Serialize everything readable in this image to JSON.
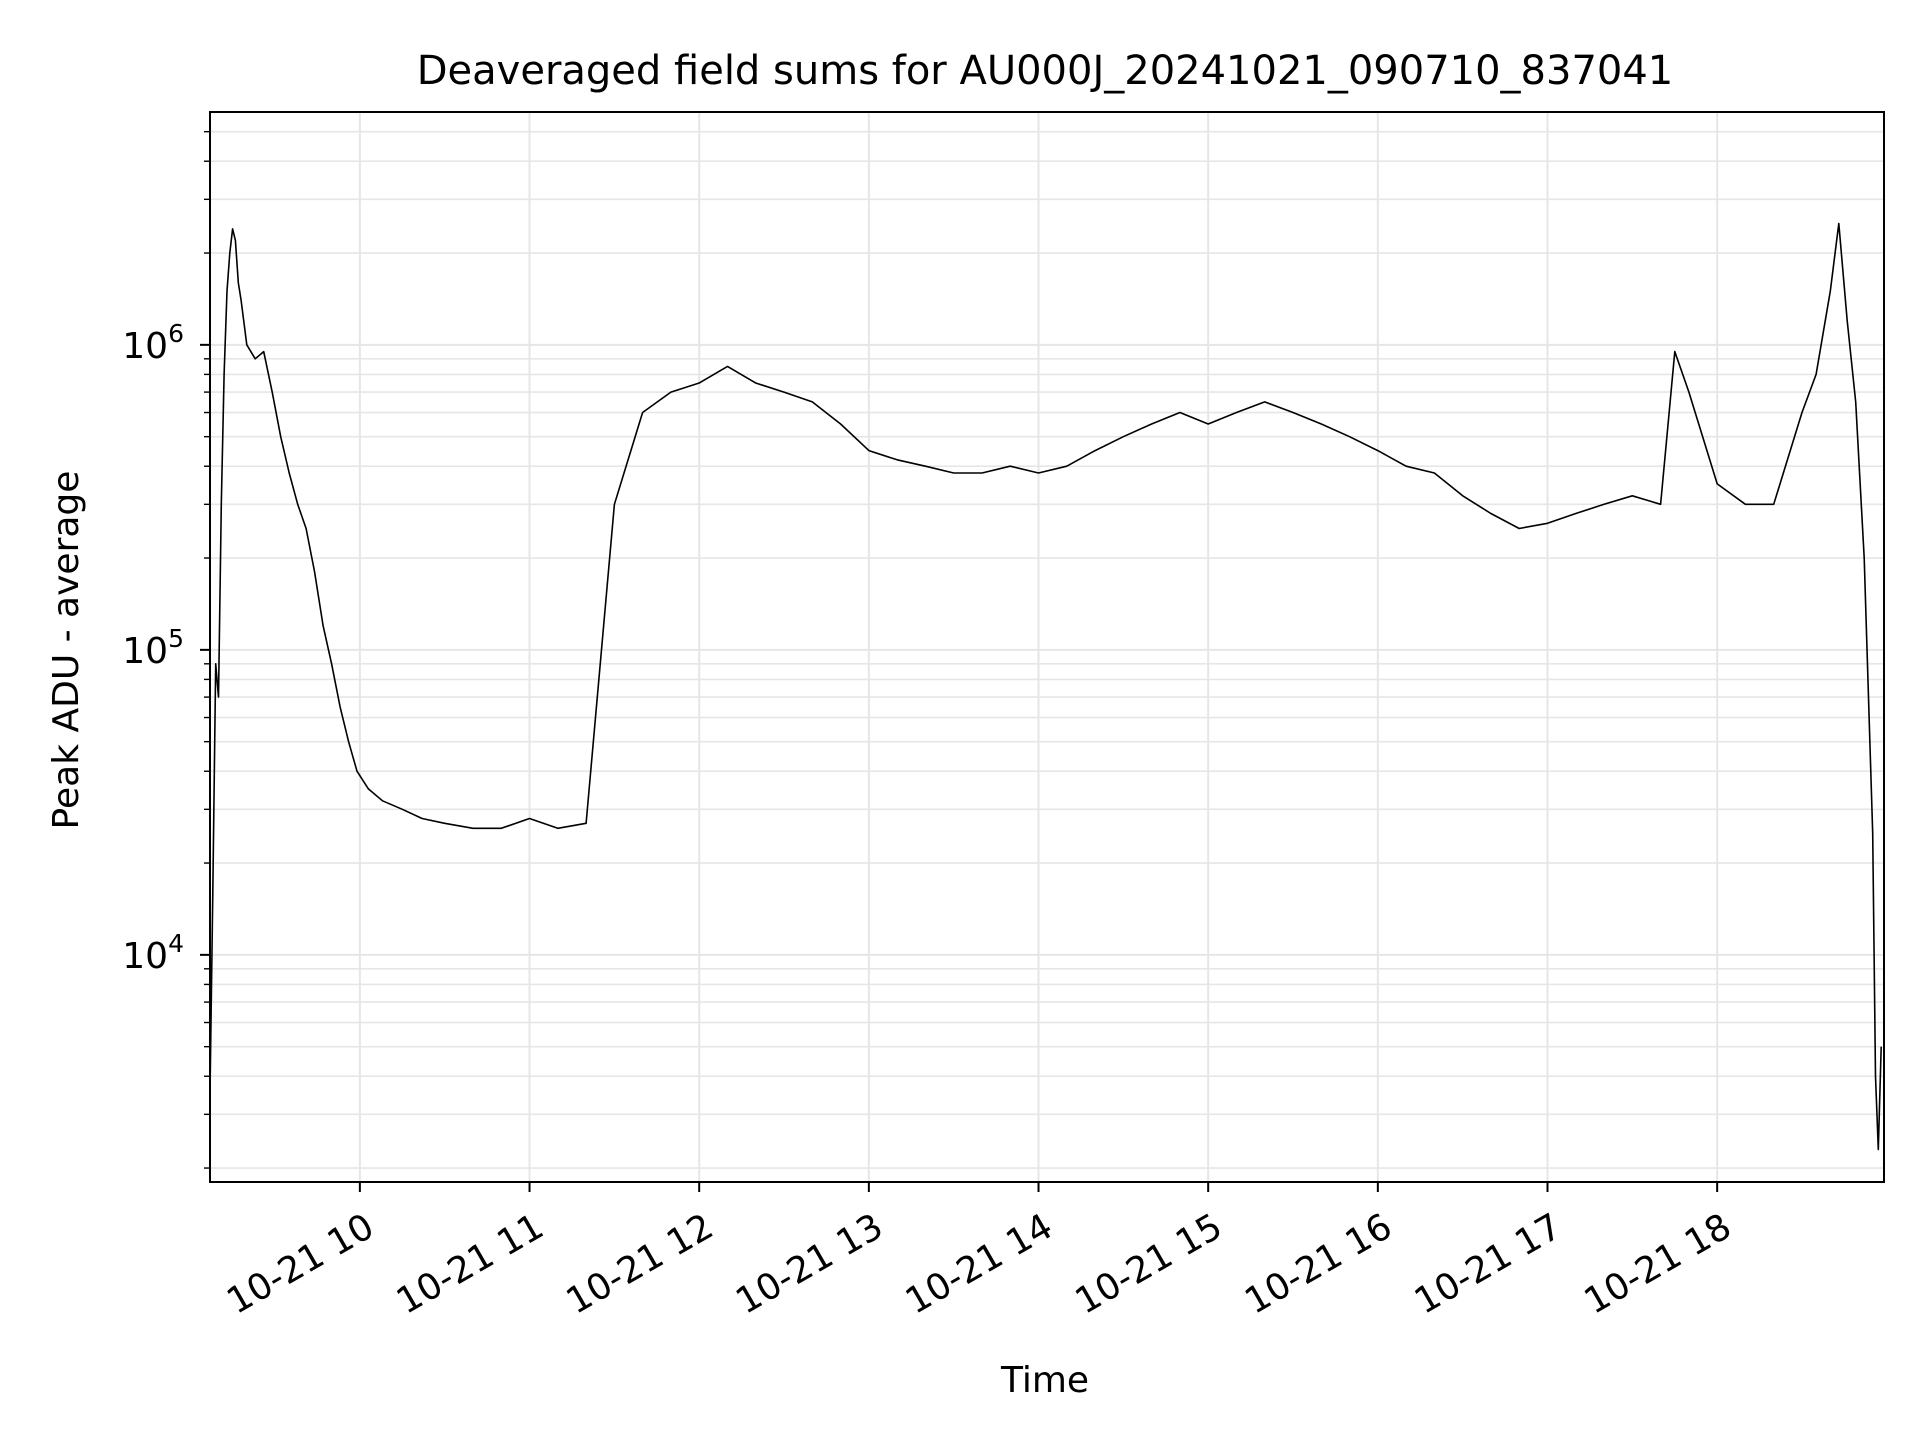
{
  "chart_data": {
    "type": "line",
    "title": "Deaveraged field sums for AU000J_20241021_090710_837041",
    "xlabel": "Time",
    "ylabel": "Peak ADU - average",
    "x_axis_type": "datetime",
    "x_range": [
      "2024-10-21T09:07:00",
      "2024-10-21T18:59:00"
    ],
    "y_scale": "log",
    "ylim": [
      1800,
      5800000
    ],
    "grid": true,
    "x_tick_labels": [
      "10-21 10",
      "10-21 11",
      "10-21 12",
      "10-21 13",
      "10-21 14",
      "10-21 15",
      "10-21 16",
      "10-21 17",
      "10-21 18"
    ],
    "x_ticks": [
      "2024-10-21T10:00:00",
      "2024-10-21T11:00:00",
      "2024-10-21T12:00:00",
      "2024-10-21T13:00:00",
      "2024-10-21T14:00:00",
      "2024-10-21T15:00:00",
      "2024-10-21T16:00:00",
      "2024-10-21T17:00:00",
      "2024-10-21T18:00:00"
    ],
    "y_ticks": [
      {
        "value": 10000,
        "base": "10",
        "exp": "4"
      },
      {
        "value": 100000,
        "base": "10",
        "exp": "5"
      },
      {
        "value": 1000000,
        "base": "10",
        "exp": "6"
      }
    ],
    "line_color": "#000000",
    "grid_color": "#e6e6e6",
    "series": [
      {
        "values": [
          [
            "2024-10-21T09:07:00",
            3500
          ],
          [
            "2024-10-21T09:08:00",
            16000
          ],
          [
            "2024-10-21T09:09:00",
            90000
          ],
          [
            "2024-10-21T09:10:00",
            70000
          ],
          [
            "2024-10-21T09:11:00",
            300000
          ],
          [
            "2024-10-21T09:12:00",
            800000
          ],
          [
            "2024-10-21T09:13:00",
            1500000
          ],
          [
            "2024-10-21T09:14:00",
            2000000
          ],
          [
            "2024-10-21T09:15:00",
            2400000
          ],
          [
            "2024-10-21T09:16:00",
            2200000
          ],
          [
            "2024-10-21T09:17:00",
            1600000
          ],
          [
            "2024-10-21T09:18:00",
            1400000
          ],
          [
            "2024-10-21T09:20:00",
            1000000
          ],
          [
            "2024-10-21T09:23:00",
            900000
          ],
          [
            "2024-10-21T09:26:00",
            950000
          ],
          [
            "2024-10-21T09:29:00",
            700000
          ],
          [
            "2024-10-21T09:32:00",
            500000
          ],
          [
            "2024-10-21T09:35:00",
            380000
          ],
          [
            "2024-10-21T09:38:00",
            300000
          ],
          [
            "2024-10-21T09:41:00",
            250000
          ],
          [
            "2024-10-21T09:44:00",
            180000
          ],
          [
            "2024-10-21T09:47:00",
            120000
          ],
          [
            "2024-10-21T09:50:00",
            90000
          ],
          [
            "2024-10-21T09:53:00",
            65000
          ],
          [
            "2024-10-21T09:56:00",
            50000
          ],
          [
            "2024-10-21T09:59:00",
            40000
          ],
          [
            "2024-10-21T10:03:00",
            35000
          ],
          [
            "2024-10-21T10:08:00",
            32000
          ],
          [
            "2024-10-21T10:15:00",
            30000
          ],
          [
            "2024-10-21T10:22:00",
            28000
          ],
          [
            "2024-10-21T10:30:00",
            27000
          ],
          [
            "2024-10-21T10:40:00",
            26000
          ],
          [
            "2024-10-21T10:50:00",
            26000
          ],
          [
            "2024-10-21T11:00:00",
            28000
          ],
          [
            "2024-10-21T11:10:00",
            26000
          ],
          [
            "2024-10-21T11:20:00",
            27000
          ],
          [
            "2024-10-21T11:30:00",
            300000
          ],
          [
            "2024-10-21T11:40:00",
            600000
          ],
          [
            "2024-10-21T11:50:00",
            700000
          ],
          [
            "2024-10-21T12:00:00",
            750000
          ],
          [
            "2024-10-21T12:10:00",
            850000
          ],
          [
            "2024-10-21T12:20:00",
            750000
          ],
          [
            "2024-10-21T12:30:00",
            700000
          ],
          [
            "2024-10-21T12:40:00",
            650000
          ],
          [
            "2024-10-21T12:50:00",
            550000
          ],
          [
            "2024-10-21T13:00:00",
            450000
          ],
          [
            "2024-10-21T13:10:00",
            420000
          ],
          [
            "2024-10-21T13:20:00",
            400000
          ],
          [
            "2024-10-21T13:30:00",
            380000
          ],
          [
            "2024-10-21T13:40:00",
            380000
          ],
          [
            "2024-10-21T13:50:00",
            400000
          ],
          [
            "2024-10-21T14:00:00",
            380000
          ],
          [
            "2024-10-21T14:10:00",
            400000
          ],
          [
            "2024-10-21T14:20:00",
            450000
          ],
          [
            "2024-10-21T14:30:00",
            500000
          ],
          [
            "2024-10-21T14:40:00",
            550000
          ],
          [
            "2024-10-21T14:50:00",
            600000
          ],
          [
            "2024-10-21T15:00:00",
            550000
          ],
          [
            "2024-10-21T15:10:00",
            600000
          ],
          [
            "2024-10-21T15:20:00",
            650000
          ],
          [
            "2024-10-21T15:30:00",
            600000
          ],
          [
            "2024-10-21T15:40:00",
            550000
          ],
          [
            "2024-10-21T15:50:00",
            500000
          ],
          [
            "2024-10-21T16:00:00",
            450000
          ],
          [
            "2024-10-21T16:10:00",
            400000
          ],
          [
            "2024-10-21T16:20:00",
            380000
          ],
          [
            "2024-10-21T16:30:00",
            320000
          ],
          [
            "2024-10-21T16:40:00",
            280000
          ],
          [
            "2024-10-21T16:50:00",
            250000
          ],
          [
            "2024-10-21T17:00:00",
            260000
          ],
          [
            "2024-10-21T17:10:00",
            280000
          ],
          [
            "2024-10-21T17:20:00",
            300000
          ],
          [
            "2024-10-21T17:30:00",
            320000
          ],
          [
            "2024-10-21T17:40:00",
            300000
          ],
          [
            "2024-10-21T17:45:00",
            950000
          ],
          [
            "2024-10-21T17:50:00",
            700000
          ],
          [
            "2024-10-21T18:00:00",
            350000
          ],
          [
            "2024-10-21T18:10:00",
            300000
          ],
          [
            "2024-10-21T18:20:00",
            300000
          ],
          [
            "2024-10-21T18:30:00",
            600000
          ],
          [
            "2024-10-21T18:35:00",
            800000
          ],
          [
            "2024-10-21T18:40:00",
            1500000
          ],
          [
            "2024-10-21T18:43:00",
            2500000
          ],
          [
            "2024-10-21T18:46:00",
            1200000
          ],
          [
            "2024-10-21T18:49:00",
            650000
          ],
          [
            "2024-10-21T18:52:00",
            200000
          ],
          [
            "2024-10-21T18:55:00",
            25000
          ],
          [
            "2024-10-21T18:56:00",
            4000
          ],
          [
            "2024-10-21T18:57:00",
            2300
          ],
          [
            "2024-10-21T18:58:00",
            5000
          ]
        ]
      }
    ]
  }
}
